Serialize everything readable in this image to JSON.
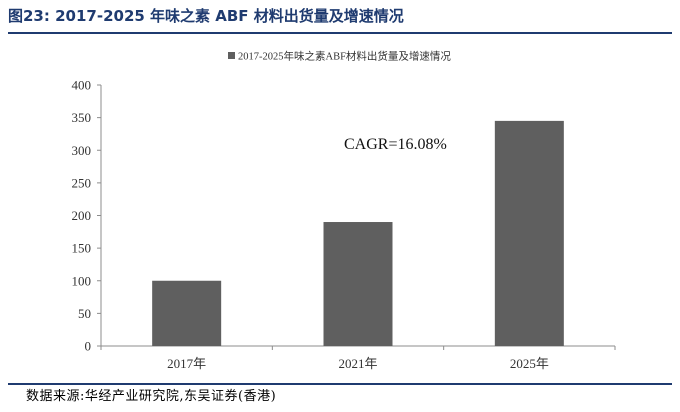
{
  "figure": {
    "title": "图23:  2017-2025 年味之素 ABF 材料出货量及增速情况",
    "source": "数据来源:华经产业研究院,东吴证券(香港)"
  },
  "chart_data": {
    "type": "bar",
    "title": "",
    "xlabel": "",
    "ylabel": "",
    "categories": [
      "2017年",
      "2021年",
      "2025年"
    ],
    "series": [
      {
        "name": "2017-2025年味之素ABF材料出货量及增速情况",
        "values": [
          100,
          190,
          345
        ],
        "color": "#5f5f5f"
      }
    ],
    "ylim": [
      0,
      400
    ],
    "yticks": [
      0,
      50,
      100,
      150,
      200,
      250,
      300,
      350,
      400
    ],
    "grid": false,
    "legend": "top-center",
    "annotations": [
      "CAGR=16.08%"
    ]
  }
}
